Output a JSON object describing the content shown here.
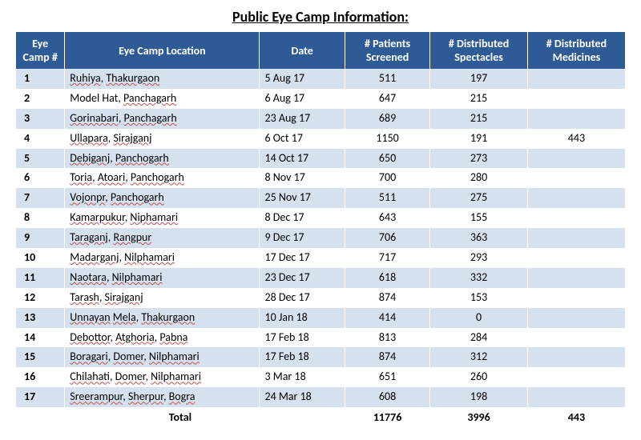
{
  "title": "Public Eye Camp Information:",
  "colors": {
    "header_bg": "#2e5b96",
    "header_text": "#ffffff",
    "row_odd_bg": "#d6e1f0",
    "row_even_bg": "#ffffff",
    "spellcheck_wave": "#c0504d"
  },
  "typography": {
    "font_family": "Calibri, Arial, sans-serif",
    "title_fontsize": 18,
    "header_fontsize": 14,
    "cell_fontsize": 14
  },
  "table": {
    "columns": [
      {
        "label": "Eye Camp #",
        "width_pct": 8,
        "align": "left"
      },
      {
        "label": "Eye Camp Location",
        "width_pct": 32,
        "align": "left"
      },
      {
        "label": "Date",
        "width_pct": 14,
        "align": "left"
      },
      {
        "label": "# Patients Screened",
        "width_pct": 14,
        "align": "center"
      },
      {
        "label": "# Distributed Spectacles",
        "width_pct": 16,
        "align": "center"
      },
      {
        "label": "# Distributed Medicines",
        "width_pct": 16,
        "align": "center"
      }
    ],
    "rows": [
      {
        "num": "1",
        "location": "Ruhiya, Thakurgaon",
        "date": "5 Aug 17",
        "patients": "511",
        "spectacles": "197",
        "medicines": ""
      },
      {
        "num": "2",
        "location": "Model Hat, Panchagarh",
        "date": "6 Aug 17",
        "patients": "647",
        "spectacles": "215",
        "medicines": ""
      },
      {
        "num": "3",
        "location": "Gorinabari, Panchagarh",
        "date": "23 Aug 17",
        "patients": "689",
        "spectacles": "215",
        "medicines": ""
      },
      {
        "num": "4",
        "location": "Ullapara, Sirajganj",
        "date": "6 Oct 17",
        "patients": "1150",
        "spectacles": "191",
        "medicines": "443"
      },
      {
        "num": "5",
        "location": "Debiganj, Panchogarh",
        "date": "14 Oct 17",
        "patients": "650",
        "spectacles": "273",
        "medicines": ""
      },
      {
        "num": "6",
        "location": "Toria, Atoari, Panchogarh",
        "date": "8 Nov 17",
        "patients": "700",
        "spectacles": "280",
        "medicines": ""
      },
      {
        "num": "7",
        "location": "Vojonpr, Panchogarh",
        "date": "25 Nov 17",
        "patients": "511",
        "spectacles": "275",
        "medicines": ""
      },
      {
        "num": "8",
        "location": "Kamarpukur, Niphamari",
        "date": "8 Dec 17",
        "patients": "643",
        "spectacles": "155",
        "medicines": ""
      },
      {
        "num": "9",
        "location": "Taraganj, Rangpur",
        "date": "9 Dec 17",
        "patients": "706",
        "spectacles": "363",
        "medicines": ""
      },
      {
        "num": "10",
        "location": "Madarganj, Nilphamari",
        "date": "17 Dec 17",
        "patients": "717",
        "spectacles": "293",
        "medicines": ""
      },
      {
        "num": "11",
        "location": "Naotara, Nilphamari",
        "date": "23 Dec 17",
        "patients": "618",
        "spectacles": "332",
        "medicines": ""
      },
      {
        "num": "12",
        "location": "Tarash, Sirajganj",
        "date": "28 Dec 17",
        "patients": "874",
        "spectacles": "153",
        "medicines": ""
      },
      {
        "num": "13",
        "location": "Unnayan Mela, Thakurgaon",
        "date": "10 Jan 18",
        "patients": "414",
        "spectacles": "0",
        "medicines": ""
      },
      {
        "num": "14",
        "location": "Debottor, Atghoria, Pabna",
        "date": "17 Feb 18",
        "patients": "813",
        "spectacles": "284",
        "medicines": ""
      },
      {
        "num": "15",
        "location": "Boragari, Domer, Nilphamari",
        "date": "17 Feb 18",
        "patients": "874",
        "spectacles": "312",
        "medicines": ""
      },
      {
        "num": "16",
        "location": "Chilahati, Domer, Nilphamari",
        "date": "3 Mar 18",
        "patients": "651",
        "spectacles": "260",
        "medicines": ""
      },
      {
        "num": "17",
        "location": "Sreerampur, Sherpur, Bogra",
        "date": "24 Mar 18",
        "patients": "608",
        "spectacles": "198",
        "medicines": ""
      }
    ],
    "spellcheck_words": [
      "Ruhiya",
      "Thakurgaon",
      "Panchagarh",
      "Gorinabari",
      "Ullapara",
      "Sirajganj",
      "Debiganj",
      "Panchogarh",
      "Toria",
      "Atoari",
      "Vojonpr",
      "Kamarpukur",
      "Niphamari",
      "Taraganj",
      "Rangpur",
      "Madarganj",
      "Nilphamari",
      "Naotara",
      "Tarash",
      "Unnayan",
      "Mela",
      "Debottor",
      "Atghoria",
      "Pabna",
      "Boragari",
      "Domer",
      "Chilahati",
      "Sreerampur",
      "Sherpur",
      "Bogra"
    ],
    "total": {
      "label": "Total",
      "patients": "11776",
      "spectacles": "3996",
      "medicines": "443"
    }
  }
}
